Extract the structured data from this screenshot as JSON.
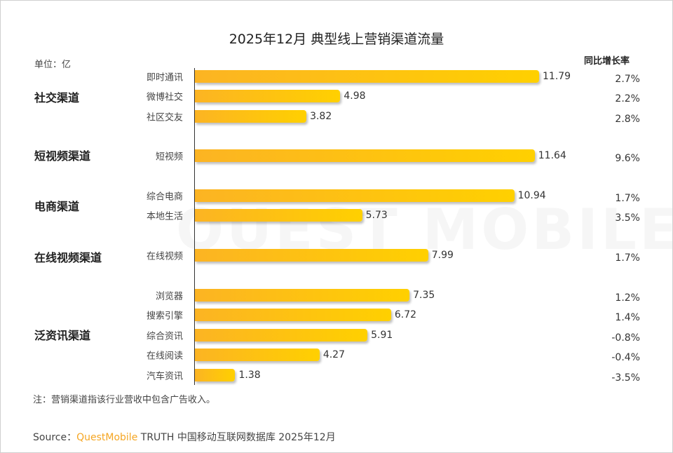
{
  "chart_data": {
    "type": "bar",
    "orientation": "horizontal",
    "title": "2025年12月 典型线上营销渠道流量",
    "unit_label": "单位：亿",
    "yoy_header": "同比增长率",
    "bar_colors": [
      "#fcb423",
      "#ffd000"
    ],
    "groups": [
      {
        "name": "社交渠道",
        "items": [
          {
            "label": "即时通讯",
            "value": 11.79,
            "yoy": "2.7%"
          },
          {
            "label": "微博社交",
            "value": 4.98,
            "yoy": "2.2%"
          },
          {
            "label": "社区交友",
            "value": 3.82,
            "yoy": "2.8%"
          }
        ]
      },
      {
        "name": "短视频渠道",
        "items": [
          {
            "label": "短视频",
            "value": 11.64,
            "yoy": "9.6%"
          }
        ]
      },
      {
        "name": "电商渠道",
        "items": [
          {
            "label": "综合电商",
            "value": 10.94,
            "yoy": "1.7%"
          },
          {
            "label": "本地生活",
            "value": 5.73,
            "yoy": "3.5%"
          }
        ]
      },
      {
        "name": "在线视频渠道",
        "items": [
          {
            "label": "在线视频",
            "value": 7.99,
            "yoy": "1.7%"
          }
        ]
      },
      {
        "name": "泛资讯渠道",
        "items": [
          {
            "label": "浏览器",
            "value": 7.35,
            "yoy": "1.2%"
          },
          {
            "label": "搜索引擎",
            "value": 6.72,
            "yoy": "1.4%"
          },
          {
            "label": "综合资讯",
            "value": 5.91,
            "yoy": "-0.8%"
          },
          {
            "label": "在线阅读",
            "value": 4.27,
            "yoy": "-0.4%"
          },
          {
            "label": "汽车资讯",
            "value": 1.38,
            "yoy": "-3.5%"
          }
        ]
      }
    ]
  },
  "watermark": "QUEST MOBILE",
  "note": "注：营销渠道指该行业营收中包含广告收入。",
  "source": {
    "prefix": "Source：",
    "brand": "QuestMobile",
    "text": " TRUTH 中国移动互联网数据库 2025年12月"
  }
}
